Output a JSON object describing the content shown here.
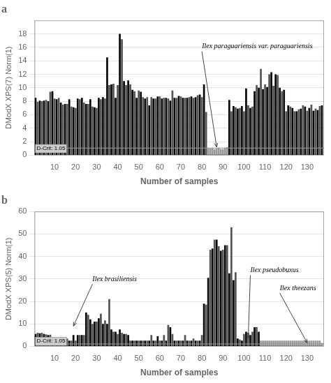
{
  "chart_data": [
    {
      "type": "bar",
      "title": "a",
      "xlabel": "Number of samples",
      "ylabel": "DModX XPS(7) Norm(1)",
      "x": [
        1,
        2,
        3,
        4,
        5,
        6,
        7,
        8,
        9,
        10,
        11,
        12,
        13,
        14,
        15,
        16,
        17,
        18,
        19,
        20,
        21,
        22,
        23,
        24,
        25,
        26,
        27,
        28,
        29,
        30,
        31,
        32,
        33,
        34,
        35,
        36,
        37,
        38,
        39,
        40,
        41,
        42,
        43,
        44,
        45,
        46,
        47,
        48,
        49,
        50,
        51,
        52,
        53,
        54,
        55,
        56,
        57,
        58,
        59,
        60,
        61,
        62,
        63,
        64,
        65,
        66,
        67,
        68,
        69,
        70,
        71,
        72,
        73,
        74,
        75,
        76,
        77,
        78,
        79,
        80,
        81,
        82,
        83,
        84,
        85,
        86,
        87,
        88,
        89,
        90,
        91,
        92,
        93,
        94,
        95,
        96,
        97,
        98,
        99,
        100,
        101,
        102,
        103,
        104,
        105,
        106,
        107,
        108,
        109,
        110,
        111,
        112,
        113,
        114,
        115,
        116,
        117,
        118,
        119,
        120,
        121,
        122,
        123,
        124,
        125,
        126,
        127,
        128,
        129,
        130,
        131,
        132,
        133,
        134,
        135,
        136,
        137
      ],
      "values": [
        8.5,
        7.9,
        8.1,
        8.0,
        8.1,
        8.2,
        8.0,
        9.4,
        9.5,
        8.4,
        8.3,
        8.5,
        7.8,
        7.5,
        7.6,
        7.6,
        8.3,
        7.2,
        7.1,
        7.0,
        8.4,
        8.3,
        8.5,
        7.8,
        7.6,
        7.6,
        8.3,
        7.2,
        7.1,
        7.0,
        8.5,
        8.3,
        8.6,
        8.4,
        14.5,
        10.4,
        10.5,
        10.6,
        8.5,
        10.4,
        18.0,
        17.2,
        11.0,
        10.4,
        11.1,
        10.5,
        9.7,
        9.5,
        8.5,
        9.6,
        9.4,
        8.6,
        8.4,
        8.6,
        7.4,
        8.6,
        8.4,
        8.4,
        8.7,
        8.7,
        8.4,
        8.5,
        8.5,
        8.4,
        8.1,
        9.6,
        8.5,
        8.5,
        8.8,
        8.7,
        8.5,
        8.5,
        8.5,
        8.6,
        8.7,
        8.5,
        8.6,
        8.9,
        9.0,
        8.6,
        10.5,
        6.4,
        1.1,
        1.0,
        1.1,
        0.9,
        1.0,
        1.1,
        0.9,
        0.9,
        1.1,
        1.2,
        8.2,
        6.5,
        7.3,
        7.1,
        6.9,
        7.0,
        7.3,
        6.5,
        9.9,
        7.4,
        7.0,
        7.2,
        9.5,
        10.4,
        10.0,
        12.8,
        9.8,
        10.5,
        10.1,
        12.0,
        12.3,
        10.3,
        12.0,
        11.9,
        10.0,
        9.5,
        9.7,
        6.5,
        7.4,
        7.2,
        7.0,
        6.5,
        6.5,
        6.8,
        6.9,
        7.4,
        7.2,
        6.6,
        7.0,
        7.5,
        6.6,
        6.9,
        6.7,
        7.3,
        7.4
      ],
      "colors": [
        "#0a0a0a",
        "#555555",
        "#0a0a0a",
        "#555555",
        "#0a0a0a",
        "#555555",
        "#0a0a0a",
        "#555555",
        "#0a0a0a",
        "#555555",
        "#0a0a0a",
        "#555555",
        "#0a0a0a",
        "#555555",
        "#0a0a0a",
        "#555555",
        "#0a0a0a",
        "#555555",
        "#0a0a0a",
        "#555555",
        "#0a0a0a",
        "#555555",
        "#0a0a0a",
        "#555555",
        "#0a0a0a",
        "#555555",
        "#0a0a0a",
        "#555555",
        "#0a0a0a",
        "#555555",
        "#0a0a0a",
        "#555555",
        "#0a0a0a",
        "#555555",
        "#0a0a0a",
        "#555555",
        "#0a0a0a",
        "#555555",
        "#0a0a0a",
        "#555555",
        "#0a0a0a",
        "#555555",
        "#0a0a0a",
        "#555555",
        "#0a0a0a",
        "#555555",
        "#0a0a0a",
        "#555555",
        "#0a0a0a",
        "#555555",
        "#0a0a0a",
        "#555555",
        "#0a0a0a",
        "#555555",
        "#0a0a0a",
        "#555555",
        "#0a0a0a",
        "#555555",
        "#0a0a0a",
        "#555555",
        "#0a0a0a",
        "#555555",
        "#0a0a0a",
        "#555555",
        "#0a0a0a",
        "#555555",
        "#0a0a0a",
        "#555555",
        "#0a0a0a",
        "#555555",
        "#0a0a0a",
        "#555555",
        "#0a0a0a",
        "#555555",
        "#0a0a0a",
        "#555555",
        "#0a0a0a",
        "#555555",
        "#0a0a0a",
        "#555555",
        "#0a0a0a",
        "#555555",
        "#999999",
        "#999999",
        "#999999",
        "#999999",
        "#999999",
        "#999999",
        "#999999",
        "#999999",
        "#999999",
        "#999999",
        "#0a0a0a",
        "#555555",
        "#0a0a0a",
        "#555555",
        "#0a0a0a",
        "#555555",
        "#0a0a0a",
        "#555555",
        "#0a0a0a",
        "#555555",
        "#0a0a0a",
        "#555555",
        "#0a0a0a",
        "#555555",
        "#0a0a0a",
        "#555555",
        "#0a0a0a",
        "#555555",
        "#0a0a0a",
        "#555555",
        "#0a0a0a",
        "#555555",
        "#0a0a0a",
        "#555555",
        "#0a0a0a",
        "#555555",
        "#0a0a0a",
        "#555555",
        "#0a0a0a",
        "#555555",
        "#0a0a0a",
        "#555555",
        "#0a0a0a",
        "#555555",
        "#0a0a0a",
        "#555555",
        "#0a0a0a",
        "#555555",
        "#0a0a0a",
        "#555555",
        "#0a0a0a",
        "#555555",
        "#0a0a0a",
        "#555555",
        "#0a0a0a"
      ],
      "xlim": [
        0.5,
        138
      ],
      "xticks": [
        10,
        20,
        30,
        40,
        50,
        60,
        70,
        80,
        90,
        100,
        110,
        120,
        130
      ],
      "ylim": [
        0,
        20
      ],
      "yticks": [
        0,
        2,
        4,
        6,
        8,
        10,
        12,
        14,
        16,
        18
      ],
      "grid": "y",
      "hlines": [
        {
          "y": 1.05,
          "color": "#999999",
          "label": "D-Crit: 1.05",
          "label_x": 4.5,
          "label_y": 0.35
        }
      ],
      "annotations": [
        {
          "text": "Ilex paraguariensis var. paraguariensis",
          "x": 87,
          "y": 1.2,
          "text_x": 80,
          "text_y": 15.5
        }
      ]
    },
    {
      "type": "bar",
      "title": "b",
      "xlabel": "Number of samples",
      "ylabel": "DModX XPS(5) Norm(1)",
      "x": [
        1,
        2,
        3,
        4,
        5,
        6,
        7,
        8,
        9,
        10,
        11,
        12,
        13,
        14,
        15,
        16,
        17,
        18,
        19,
        20,
        21,
        22,
        23,
        24,
        25,
        26,
        27,
        28,
        29,
        30,
        31,
        32,
        33,
        34,
        35,
        36,
        37,
        38,
        39,
        40,
        41,
        42,
        43,
        44,
        45,
        46,
        47,
        48,
        49,
        50,
        51,
        52,
        53,
        54,
        55,
        56,
        57,
        58,
        59,
        60,
        61,
        62,
        63,
        64,
        65,
        66,
        67,
        68,
        69,
        70,
        71,
        72,
        73,
        74,
        75,
        76,
        77,
        78,
        79,
        80,
        81,
        82,
        83,
        84,
        85,
        86,
        87,
        88,
        89,
        90,
        91,
        92,
        93,
        94,
        95,
        96,
        97,
        98,
        99,
        100,
        101,
        102,
        103,
        104,
        105,
        106,
        107,
        108,
        109,
        110,
        111,
        112,
        113,
        114,
        115,
        116,
        117,
        118,
        119,
        120,
        121,
        122,
        123,
        124,
        125,
        126,
        127,
        128,
        129,
        130,
        131,
        132,
        133,
        134,
        135,
        136,
        137
      ],
      "values": [
        5.5,
        6.0,
        5.8,
        6.0,
        5.5,
        5.3,
        5.0,
        5.2,
        2.5,
        2.5,
        2.5,
        2.5,
        2.5,
        2.0,
        2.5,
        3.5,
        2.5,
        2.5,
        5.0,
        2.5,
        5.0,
        5.0,
        5.0,
        5.0,
        15.0,
        14.0,
        12.0,
        10.0,
        11.0,
        11.0,
        12.5,
        14.5,
        10.0,
        11.5,
        10.0,
        21.0,
        7.5,
        6.5,
        6.5,
        5.5,
        7.5,
        6.0,
        5.5,
        5.5,
        5.0,
        2.5,
        2.5,
        2.5,
        2.5,
        2.5,
        2.5,
        2.5,
        2.5,
        2.5,
        2.5,
        5.0,
        2.5,
        2.5,
        4.5,
        2.5,
        2.5,
        5.0,
        2.5,
        9.5,
        8.5,
        5.5,
        2.5,
        2.5,
        2.5,
        2.5,
        2.5,
        5.0,
        2.5,
        2.5,
        2.5,
        3.5,
        2.5,
        2.5,
        2.5,
        5.0,
        19.0,
        18.5,
        30.5,
        43.0,
        43.5,
        47.5,
        47.5,
        44.5,
        42.5,
        43.0,
        45.0,
        45.0,
        32.5,
        53.0,
        29.5,
        33.0,
        3.5,
        3.0,
        2.5,
        5.5,
        6.5,
        6.0,
        5.0,
        6.5,
        8.5,
        8.5,
        6.5,
        2.5,
        2.5,
        2.5,
        2.5,
        2.5,
        2.5,
        2.5,
        2.5,
        2.5,
        2.5,
        2.5,
        2.5,
        2.5,
        2.5,
        2.5,
        2.5,
        2.5,
        2.5,
        2.5,
        2.5,
        2.5,
        2.5,
        2.5,
        2.5,
        2.5,
        2.5,
        2.5,
        2.5,
        2.5,
        1.5
      ],
      "colors": [
        "#0a0a0a",
        "#555555",
        "#0a0a0a",
        "#555555",
        "#0a0a0a",
        "#555555",
        "#0a0a0a",
        "#555555",
        "#0a0a0a",
        "#555555",
        "#0a0a0a",
        "#555555",
        "#0a0a0a",
        "#555555",
        "#0a0a0a",
        "#555555",
        "#0a0a0a",
        "#555555",
        "#0a0a0a",
        "#555555",
        "#0a0a0a",
        "#555555",
        "#0a0a0a",
        "#555555",
        "#0a0a0a",
        "#555555",
        "#0a0a0a",
        "#555555",
        "#0a0a0a",
        "#555555",
        "#0a0a0a",
        "#555555",
        "#0a0a0a",
        "#555555",
        "#0a0a0a",
        "#555555",
        "#0a0a0a",
        "#555555",
        "#0a0a0a",
        "#555555",
        "#0a0a0a",
        "#555555",
        "#0a0a0a",
        "#555555",
        "#0a0a0a",
        "#555555",
        "#0a0a0a",
        "#555555",
        "#0a0a0a",
        "#555555",
        "#0a0a0a",
        "#555555",
        "#0a0a0a",
        "#555555",
        "#0a0a0a",
        "#555555",
        "#0a0a0a",
        "#555555",
        "#0a0a0a",
        "#555555",
        "#0a0a0a",
        "#555555",
        "#0a0a0a",
        "#555555",
        "#0a0a0a",
        "#555555",
        "#0a0a0a",
        "#555555",
        "#0a0a0a",
        "#555555",
        "#0a0a0a",
        "#555555",
        "#0a0a0a",
        "#555555",
        "#0a0a0a",
        "#555555",
        "#0a0a0a",
        "#555555",
        "#0a0a0a",
        "#555555",
        "#0a0a0a",
        "#555555",
        "#0a0a0a",
        "#555555",
        "#0a0a0a",
        "#555555",
        "#0a0a0a",
        "#555555",
        "#0a0a0a",
        "#555555",
        "#0a0a0a",
        "#555555",
        "#0a0a0a",
        "#555555",
        "#0a0a0a",
        "#555555",
        "#0a0a0a",
        "#555555",
        "#0a0a0a",
        "#555555",
        "#0a0a0a",
        "#555555",
        "#0a0a0a",
        "#555555",
        "#0a0a0a",
        "#555555",
        "#0a0a0a",
        "#999999",
        "#999999",
        "#999999",
        "#999999",
        "#999999",
        "#999999",
        "#999999",
        "#999999",
        "#999999",
        "#999999",
        "#999999",
        "#999999",
        "#999999",
        "#999999",
        "#999999",
        "#999999",
        "#999999",
        "#999999",
        "#999999",
        "#999999",
        "#999999",
        "#999999",
        "#999999",
        "#999999",
        "#999999",
        "#999999",
        "#999999",
        "#999999",
        "#999999",
        "#999999"
      ],
      "xlim": [
        0.5,
        138
      ],
      "xticks": [
        10,
        20,
        30,
        40,
        50,
        60,
        70,
        80,
        90,
        100,
        110,
        120,
        130
      ],
      "ylim": [
        0,
        60
      ],
      "yticks": [
        0,
        10,
        20,
        30,
        40,
        50,
        60
      ],
      "grid": "y",
      "hlines": [
        {
          "y": 1.05,
          "color": "#999999",
          "label": "D-Crit: 1.05",
          "label_x": 4.5,
          "label_y": 0.35
        }
      ],
      "annotations": [
        {
          "text": "Ilex brasiliensis",
          "x": 19,
          "y": 9.0,
          "text_x": 28,
          "text_y": 28
        },
        {
          "text": "Ilex pseudobuxus",
          "x": 102,
          "y": 3.5,
          "text_x": 103,
          "text_y": 32
        },
        {
          "text": "Ilex theezans",
          "x": 130,
          "y": 1.5,
          "text_x": 117,
          "text_y": 24
        }
      ]
    }
  ]
}
